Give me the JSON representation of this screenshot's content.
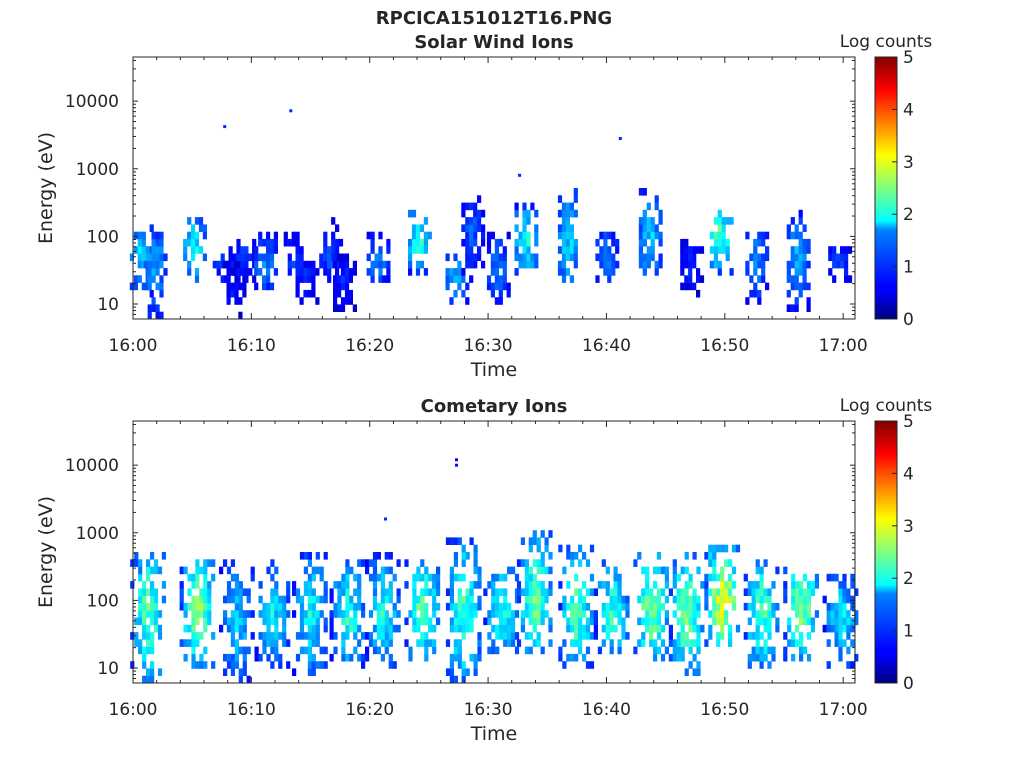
{
  "figure": {
    "title": "RPCICA151012T16.PNG"
  },
  "chart_data": [
    {
      "type": "heatmap",
      "title": "Solar Wind Ions",
      "xlabel": "Time",
      "ylabel": "Energy (eV)",
      "x_ticks": [
        "16:00",
        "16:10",
        "16:20",
        "16:30",
        "16:40",
        "16:50",
        "17:00"
      ],
      "xlim": [
        "16:00",
        "17:01"
      ],
      "y_scale": "log",
      "y_ticks": [
        "10",
        "100",
        "1000",
        "10000"
      ],
      "ylim": [
        6,
        45000
      ],
      "colorbar": {
        "label": "Log counts",
        "range": [
          0,
          5
        ],
        "ticks": [
          "0",
          "1",
          "2",
          "3",
          "4",
          "5"
        ],
        "colormap": "jet"
      },
      "bursts": [
        {
          "t": "16:00:30",
          "e_center": 55,
          "e_low": 14,
          "e_high": 160,
          "peak_log": 2.0
        },
        {
          "t": "16:01:40",
          "e_center": 55,
          "e_low": 6,
          "e_high": 120,
          "peak_log": 1.8
        },
        {
          "t": "16:05:00",
          "e_center": 70,
          "e_low": 20,
          "e_high": 200,
          "peak_log": 2.3
        },
        {
          "t": "16:07:30",
          "e_center": 40,
          "e_low": 20,
          "e_high": 65,
          "peak_log": 1.2
        },
        {
          "t": "16:08:20",
          "e_center": 15,
          "e_low": 6,
          "e_high": 45,
          "peak_log": 0.9
        },
        {
          "t": "16:09:10",
          "e_center": 60,
          "e_low": 20,
          "e_high": 100,
          "peak_log": 1.1
        },
        {
          "t": "16:11:00",
          "e_center": 40,
          "e_low": 15,
          "e_high": 120,
          "peak_log": 1.6
        },
        {
          "t": "16:13:30",
          "e_center": 40,
          "e_low": 20,
          "e_high": 120,
          "peak_log": 1.1
        },
        {
          "t": "16:14:30",
          "e_center": 25,
          "e_low": 10,
          "e_high": 60,
          "peak_log": 1.0
        },
        {
          "t": "16:16:30",
          "e_center": 45,
          "e_low": 20,
          "e_high": 180,
          "peak_log": 1.2
        },
        {
          "t": "16:17:40",
          "e_center": 25,
          "e_low": 8,
          "e_high": 60,
          "peak_log": 1.0
        },
        {
          "t": "16:20:30",
          "e_center": 35,
          "e_low": 20,
          "e_high": 110,
          "peak_log": 1.6
        },
        {
          "t": "16:24:00",
          "e_center": 90,
          "e_low": 30,
          "e_high": 260,
          "peak_log": 2.5
        },
        {
          "t": "16:27:10",
          "e_center": 25,
          "e_low": 10,
          "e_high": 60,
          "peak_log": 1.9
        },
        {
          "t": "16:28:30",
          "e_center": 140,
          "e_low": 20,
          "e_high": 450,
          "peak_log": 1.3
        },
        {
          "t": "16:30:40",
          "e_center": 35,
          "e_low": 10,
          "e_high": 120,
          "peak_log": 1.5
        },
        {
          "t": "16:33:00",
          "e_center": 90,
          "e_low": 25,
          "e_high": 280,
          "peak_log": 2.4
        },
        {
          "t": "16:36:40",
          "e_center": 70,
          "e_low": 15,
          "e_high": 580,
          "peak_log": 2.0
        },
        {
          "t": "16:39:50",
          "e_center": 45,
          "e_low": 20,
          "e_high": 130,
          "peak_log": 1.6
        },
        {
          "t": "16:43:30",
          "e_center": 90,
          "e_low": 20,
          "e_high": 470,
          "peak_log": 2.0
        },
        {
          "t": "16:47:00",
          "e_center": 35,
          "e_low": 14,
          "e_high": 100,
          "peak_log": 1.0
        },
        {
          "t": "16:49:30",
          "e_center": 110,
          "e_low": 30,
          "e_high": 270,
          "peak_log": 2.8
        },
        {
          "t": "16:52:30",
          "e_center": 50,
          "e_low": 10,
          "e_high": 140,
          "peak_log": 1.6
        },
        {
          "t": "16:56:00",
          "e_center": 60,
          "e_low": 8,
          "e_high": 220,
          "peak_log": 1.8
        },
        {
          "t": "16:59:30",
          "e_center": 40,
          "e_low": 20,
          "e_high": 80,
          "peak_log": 1.2
        }
      ],
      "isolated_points": [
        {
          "t": "16:07:45",
          "e": 4200,
          "log": 0.8
        },
        {
          "t": "16:13:20",
          "e": 7200,
          "log": 0.8
        },
        {
          "t": "16:32:40",
          "e": 800,
          "log": 0.8
        },
        {
          "t": "16:41:10",
          "e": 2800,
          "log": 0.8
        }
      ]
    },
    {
      "type": "heatmap",
      "title": "Cometary Ions",
      "xlabel": "Time",
      "ylabel": "Energy (eV)",
      "x_ticks": [
        "16:00",
        "16:10",
        "16:20",
        "16:30",
        "16:40",
        "16:50",
        "17:00"
      ],
      "xlim": [
        "16:00",
        "17:01"
      ],
      "y_scale": "log",
      "y_ticks": [
        "10",
        "100",
        "1000",
        "10000"
      ],
      "ylim": [
        6,
        45000
      ],
      "colorbar": {
        "label": "Log counts",
        "range": [
          0,
          5
        ],
        "ticks": [
          "0",
          "1",
          "2",
          "3",
          "4",
          "5"
        ],
        "colormap": "jet"
      },
      "bursts": [
        {
          "t": "16:01:10",
          "e_center": 75,
          "e_low": 6,
          "e_high": 550,
          "peak_log": 2.8
        },
        {
          "t": "16:05:20",
          "e_center": 70,
          "e_low": 10,
          "e_high": 450,
          "peak_log": 3.0
        },
        {
          "t": "16:08:40",
          "e_center": 45,
          "e_low": 6,
          "e_high": 400,
          "peak_log": 2.0
        },
        {
          "t": "16:11:40",
          "e_center": 60,
          "e_low": 10,
          "e_high": 380,
          "peak_log": 2.2
        },
        {
          "t": "16:14:50",
          "e_center": 60,
          "e_low": 8,
          "e_high": 500,
          "peak_log": 2.3
        },
        {
          "t": "16:18:00",
          "e_center": 50,
          "e_low": 10,
          "e_high": 450,
          "peak_log": 2.5
        },
        {
          "t": "16:21:00",
          "e_center": 60,
          "e_low": 10,
          "e_high": 500,
          "peak_log": 2.3
        },
        {
          "t": "16:24:20",
          "e_center": 80,
          "e_low": 12,
          "e_high": 450,
          "peak_log": 2.8
        },
        {
          "t": "16:27:50",
          "e_center": 70,
          "e_low": 6,
          "e_high": 800,
          "peak_log": 2.7
        },
        {
          "t": "16:31:00",
          "e_center": 60,
          "e_low": 15,
          "e_high": 350,
          "peak_log": 2.5
        },
        {
          "t": "16:33:50",
          "e_center": 90,
          "e_low": 15,
          "e_high": 1200,
          "peak_log": 2.9
        },
        {
          "t": "16:37:20",
          "e_center": 70,
          "e_low": 10,
          "e_high": 700,
          "peak_log": 2.8
        },
        {
          "t": "16:40:20",
          "e_center": 60,
          "e_low": 15,
          "e_high": 450,
          "peak_log": 2.6
        },
        {
          "t": "16:43:40",
          "e_center": 80,
          "e_low": 12,
          "e_high": 550,
          "peak_log": 3.1
        },
        {
          "t": "16:46:40",
          "e_center": 70,
          "e_low": 8,
          "e_high": 500,
          "peak_log": 3.0
        },
        {
          "t": "16:49:40",
          "e_center": 100,
          "e_low": 20,
          "e_high": 650,
          "peak_log": 3.6
        },
        {
          "t": "16:53:00",
          "e_center": 70,
          "e_low": 10,
          "e_high": 400,
          "peak_log": 2.8
        },
        {
          "t": "16:56:20",
          "e_center": 80,
          "e_low": 12,
          "e_high": 450,
          "peak_log": 3.0
        },
        {
          "t": "16:59:40",
          "e_center": 55,
          "e_low": 10,
          "e_high": 250,
          "peak_log": 2.2
        }
      ],
      "isolated_points": [
        {
          "t": "16:27:20",
          "e": 12000,
          "log": 0.7
        },
        {
          "t": "16:27:20",
          "e": 10000,
          "log": 0.7
        },
        {
          "t": "16:21:20",
          "e": 1600,
          "log": 0.8
        }
      ]
    }
  ]
}
